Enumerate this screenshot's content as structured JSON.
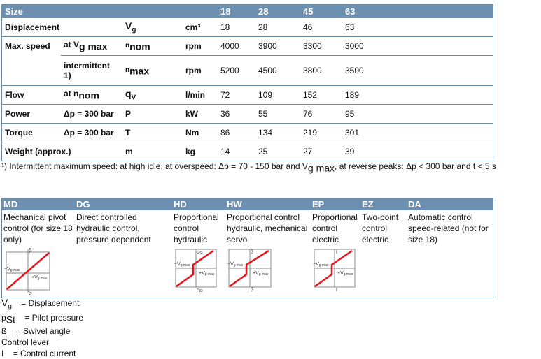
{
  "spec": {
    "header": [
      "Size",
      "18",
      "28",
      "45",
      "63"
    ],
    "rows": {
      "displacement": {
        "label": "Displacement",
        "sym": "V",
        "sym_sub": "g",
        "unit": "cm³",
        "values": [
          "18",
          "28",
          "46",
          "63"
        ]
      },
      "maxspeed_nom": {
        "label": "Max. speed",
        "cond": "at V",
        "cond_sub": "g max",
        "sym": "n",
        "sym_sub": "nom",
        "unit": "rpm",
        "values": [
          "4000",
          "3900",
          "3300",
          "3000"
        ]
      },
      "maxspeed_int": {
        "cond": "intermittent",
        "cond_note": "1)",
        "sym": "n",
        "sym_sub": "max",
        "unit": "rpm",
        "values": [
          "5200",
          "4500",
          "3800",
          "3500"
        ]
      },
      "flow": {
        "label": "Flow",
        "cond": "at n",
        "cond_sub": "nom",
        "sym": "q",
        "sym_sub": "V",
        "unit": "l/min",
        "values": [
          "72",
          "109",
          "152",
          "189"
        ]
      },
      "power": {
        "label": "Power",
        "cond": "Δp = 300 bar",
        "sym": "P",
        "unit": "kW",
        "values": [
          "36",
          "55",
          "76",
          "95"
        ]
      },
      "torque": {
        "label": "Torque",
        "cond": "Δp = 300 bar",
        "sym": "T",
        "unit": "Nm",
        "values": [
          "86",
          "134",
          "219",
          "301"
        ]
      },
      "weight": {
        "label": "Weight (approx.)",
        "sym": "m",
        "unit": "kg",
        "values": [
          "14",
          "25",
          "27",
          "39"
        ]
      }
    }
  },
  "footnote": {
    "mark": "¹)",
    "text1": " Intermittent maximum speed: at high idle, at overspeed: Δp = 70 - 150 bar and V",
    "sub": "g max",
    "text2": ", at reverse peaks: Δp < 300 bar and t < 5 s"
  },
  "controls": [
    {
      "code": "MD",
      "desc": "Mechanical pivot control (for size 18 only)"
    },
    {
      "code": "DG",
      "desc": "Direct controlled hydraulic control, pressure dependent"
    },
    {
      "code": "HD",
      "desc": "Proportional control hydraulic"
    },
    {
      "code": "HW",
      "desc": "Proportional control hydraulic, mechanical servo"
    },
    {
      "code": "EP",
      "desc": "Proportional control electric"
    },
    {
      "code": "EZ",
      "desc": "Two-point control electric"
    },
    {
      "code": "DA",
      "desc": "Automatic control speed-related (not for size 18)"
    }
  ],
  "diagram_labels": {
    "beta": "β",
    "neg_v": "−V",
    "pos_v": "+V",
    "v_sub": "g max",
    "pst": "p",
    "pst_sub": "St",
    "i": "I"
  },
  "legend": {
    "vg": {
      "sym": "V",
      "sub": "g",
      "text": "= Displacement"
    },
    "pst": {
      "sym": "p",
      "sub": "St",
      "text": "= Pilot pressure"
    },
    "beta": {
      "sym": "ß",
      "text": "= Swivel angle"
    },
    "lever": {
      "text": "Control lever"
    },
    "current": {
      "sym": "I",
      "text": "= Control current"
    }
  },
  "colors": {
    "header_bg": "#6d90b1",
    "border": "#6b8aa5",
    "curve": "#e8141b"
  }
}
